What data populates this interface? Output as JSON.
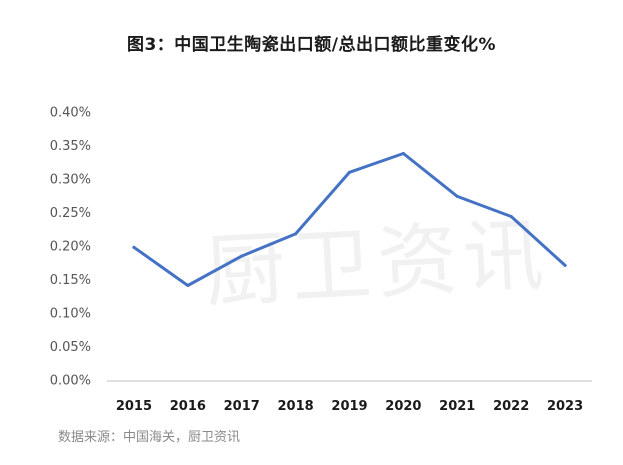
{
  "title": "图3：中国卫生陶瓷出口额/总出口额比重变化%",
  "source": "数据来源：中国海关，厨卫资讯",
  "watermark": "厨卫资讯",
  "colors": {
    "line": "#4472C4",
    "axis": "#bfbfbf"
  },
  "chart_data": {
    "type": "line",
    "categories": [
      "2015",
      "2016",
      "2017",
      "2018",
      "2019",
      "2020",
      "2021",
      "2022",
      "2023"
    ],
    "series": [
      {
        "values": [
          0.198,
          0.141,
          0.185,
          0.218,
          0.31,
          0.338,
          0.274,
          0.244,
          0.171
        ]
      }
    ],
    "yticks": [
      "0.00%",
      "0.05%",
      "0.10%",
      "0.15%",
      "0.20%",
      "0.25%",
      "0.30%",
      "0.35%",
      "0.40%"
    ],
    "ylim": [
      0,
      0.4
    ],
    "grid": false
  }
}
